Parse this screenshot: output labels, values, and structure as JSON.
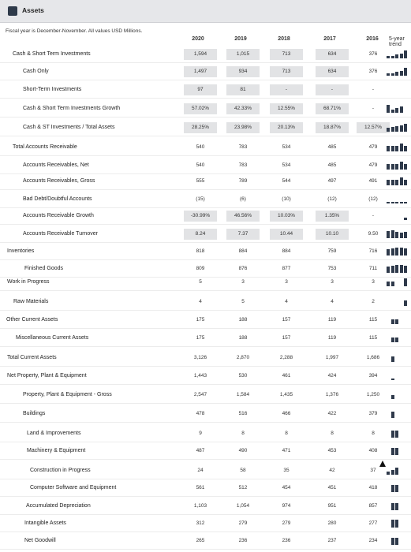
{
  "header": {
    "title": "Assets",
    "icon": "assets-icon"
  },
  "table": {
    "note": "Fiscal year is December-November. All values USD Millions.",
    "years": [
      "2020",
      "2019",
      "2018",
      "2017",
      "2016"
    ],
    "trend_label": "5-year trend",
    "rows": [
      {
        "label": "Cash & Short Term Investments",
        "values": [
          "1,594",
          "1,015",
          "713",
          "634",
          "376"
        ],
        "trend": [
          0.25,
          0.25,
          0.45,
          0.6,
          0.95
        ]
      },
      {
        "label": "Cash Only",
        "values": [
          "1,497",
          "934",
          "713",
          "634",
          "376"
        ],
        "trend": [
          0.25,
          0.3,
          0.45,
          0.6,
          0.95
        ]
      },
      {
        "label": "Short-Term Investments",
        "values": [
          "97",
          "81",
          "-",
          "-",
          "-"
        ],
        "trend": []
      },
      {
        "label": "Cash & Short Term Investments Growth",
        "values": [
          "57.02%",
          "42.33%",
          "12.55%",
          "68.71%",
          "-"
        ],
        "trend": [
          0.95,
          0.35,
          0.6,
          0.75,
          0
        ]
      },
      {
        "label": "Cash & ST Investments / Total Assets",
        "values": [
          "28.25%",
          "23.98%",
          "20.13%",
          "18.87%",
          "12.57%"
        ],
        "trend": [
          0.5,
          0.6,
          0.7,
          0.8,
          0.95
        ]
      },
      {
        "label": "Total Accounts Receivable",
        "values": [
          "540",
          "783",
          "534",
          "485",
          "479"
        ],
        "trend": [
          0.65,
          0.7,
          0.7,
          1.0,
          0.7
        ]
      },
      {
        "label": "Accounts Receivables, Net",
        "values": [
          "540",
          "783",
          "534",
          "485",
          "479"
        ],
        "trend": [
          0.65,
          0.7,
          0.7,
          1.0,
          0.7
        ]
      },
      {
        "label": "Accounts Receivables, Gross",
        "values": [
          "555",
          "789",
          "544",
          "497",
          "491"
        ],
        "trend": [
          0.65,
          0.7,
          0.7,
          1.0,
          0.7
        ]
      },
      {
        "label": "Bad Debt/Doubtful Accounts",
        "values": [
          "(15)",
          "(6)",
          "(10)",
          "(12)",
          "(12)"
        ],
        "trend": [
          0.15,
          0.15,
          0.15,
          0.15,
          0.15
        ]
      },
      {
        "label": "Accounts Receivable Growth",
        "values": [
          "-30.99%",
          "46.56%",
          "10.03%",
          "1.35%",
          "-"
        ],
        "trend": [
          0,
          0,
          0,
          0,
          0.3
        ]
      },
      {
        "label": "Accounts Receivable Turnover",
        "values": [
          "8.24",
          "7.37",
          "10.44",
          "10.10",
          "9.50"
        ],
        "trend": [
          0.9,
          0.95,
          0.75,
          0.7,
          0.75
        ]
      },
      {
        "label": "Inventories",
        "values": [
          "818",
          "884",
          "884",
          "759",
          "716"
        ],
        "trend": [
          0.8,
          0.85,
          0.95,
          0.95,
          0.9
        ]
      },
      {
        "label": "Finished Goods",
        "values": [
          "809",
          "876",
          "877",
          "753",
          "711"
        ],
        "trend": [
          0.8,
          0.85,
          0.95,
          0.95,
          0.9
        ]
      },
      {
        "label": "Work in Progress",
        "values": [
          "5",
          "3",
          "3",
          "3",
          "3"
        ],
        "trend": [
          0.6,
          0.6,
          0,
          0,
          0.95
        ]
      },
      {
        "label": "Raw Materials",
        "values": [
          "4",
          "5",
          "4",
          "4",
          "2"
        ],
        "trend": [
          0,
          0,
          0,
          0,
          0.7
        ]
      },
      {
        "label": "Other Current Assets",
        "values": [
          "175",
          "188",
          "157",
          "119",
          "115"
        ],
        "trend": [
          0,
          0.6,
          0.6,
          0,
          0
        ]
      },
      {
        "label": "Miscellaneous Current Assets",
        "values": [
          "175",
          "188",
          "157",
          "119",
          "115"
        ],
        "trend": [
          0,
          0.6,
          0.6,
          0,
          0
        ]
      },
      {
        "label": "Total Current Assets",
        "values": [
          "3,126",
          "2,870",
          "2,288",
          "1,997",
          "1,686"
        ],
        "trend": [
          0,
          0.7,
          0,
          0,
          0
        ]
      },
      {
        "label": "Net Property, Plant & Equipment",
        "values": [
          "1,443",
          "530",
          "461",
          "424",
          "394"
        ],
        "trend": [
          0,
          0.2,
          0,
          0,
          0
        ]
      },
      {
        "label": "Property, Plant & Equipment - Gross",
        "values": [
          "2,547",
          "1,584",
          "1,435",
          "1,376",
          "1,250"
        ],
        "trend": [
          0,
          0.45,
          0,
          0,
          0
        ]
      },
      {
        "label": "Buildings",
        "values": [
          "478",
          "516",
          "466",
          "422",
          "379"
        ],
        "trend": [
          0,
          0.8,
          0,
          0,
          0
        ]
      },
      {
        "label": "Land & Improvements",
        "values": [
          "9",
          "8",
          "8",
          "8",
          "8"
        ],
        "trend": [
          0,
          0.9,
          0.9,
          0,
          0
        ]
      },
      {
        "label": "Machinery & Equipment",
        "values": [
          "487",
          "490",
          "471",
          "453",
          "408"
        ],
        "trend": [
          0,
          0.85,
          0.9,
          0,
          0
        ]
      },
      {
        "label": "Construction in Progress",
        "values": [
          "24",
          "58",
          "35",
          "42",
          "37"
        ],
        "trend": [
          0.4,
          0.55,
          0.85,
          0,
          0
        ]
      },
      {
        "label": "Computer Software and Equipment",
        "values": [
          "561",
          "512",
          "454",
          "451",
          "418"
        ],
        "trend": [
          0,
          0.9,
          0.9,
          0,
          0
        ]
      },
      {
        "label": "Accumulated Depreciation",
        "values": [
          "1,103",
          "1,054",
          "974",
          "951",
          "857"
        ],
        "trend": [
          0,
          0.9,
          0.9,
          0,
          0
        ]
      },
      {
        "label": "Intangible Assets",
        "values": [
          "312",
          "279",
          "279",
          "280",
          "277"
        ],
        "trend": [
          0,
          0.95,
          0.95,
          0,
          0
        ]
      },
      {
        "label": "Net Goodwill",
        "values": [
          "265",
          "236",
          "236",
          "237",
          "234"
        ],
        "trend": [
          0,
          0.9,
          0.9,
          0,
          0
        ]
      }
    ]
  }
}
